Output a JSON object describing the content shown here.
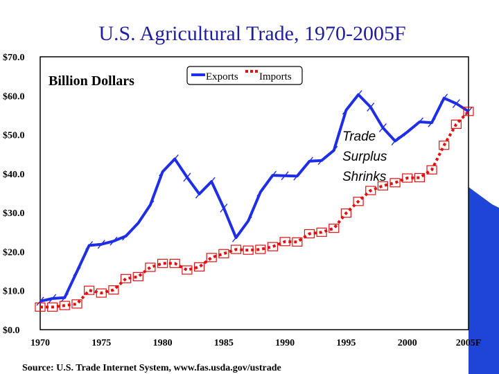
{
  "chart_data": {
    "type": "line",
    "title": "U.S. Agricultural Trade, 1970-2005F",
    "units_label": "Billion Dollars",
    "annotation": [
      "Trade",
      "Surplus",
      "Shrinks"
    ],
    "source": "Source:  U.S. Trade Internet System, www.fas.usda.gov/ustrade",
    "ylim": [
      0,
      70
    ],
    "y_ticks": [
      "$0.0",
      "$10.0",
      "$20.0",
      "$30.0",
      "$40.0",
      "$50.0",
      "$60.0",
      "$70.0"
    ],
    "x_ticks": [
      {
        "year": 1970,
        "label": "1970"
      },
      {
        "year": 1975,
        "label": "1975"
      },
      {
        "year": 1980,
        "label": "1980"
      },
      {
        "year": 1985,
        "label": "1985"
      },
      {
        "year": 1990,
        "label": "1990"
      },
      {
        "year": 1995,
        "label": "1995"
      },
      {
        "year": 2000,
        "label": "2000"
      },
      {
        "year": 2005,
        "label": "2005F"
      }
    ],
    "x": [
      1970,
      1971,
      1972,
      1973,
      1974,
      1975,
      1976,
      1977,
      1978,
      1979,
      1980,
      1981,
      1982,
      1983,
      1984,
      1985,
      1986,
      1987,
      1988,
      1989,
      1990,
      1991,
      1992,
      1993,
      1994,
      1995,
      1996,
      1997,
      1998,
      1999,
      2000,
      2001,
      2002,
      2003,
      2004,
      2005
    ],
    "series": [
      {
        "name": "Exports",
        "color": "#1e2ee6",
        "style": "solid",
        "values": [
          7.3,
          8.0,
          8.2,
          14.9,
          21.6,
          21.9,
          22.7,
          24.0,
          27.3,
          32.0,
          40.5,
          43.8,
          39.1,
          34.8,
          38.0,
          31.2,
          23.6,
          27.9,
          35.3,
          39.6,
          39.5,
          39.4,
          43.2,
          43.4,
          46.0,
          56.3,
          60.3,
          57.1,
          51.8,
          48.4,
          50.7,
          53.3,
          53.1,
          59.4,
          58.0,
          56.0
        ]
      },
      {
        "name": "Imports",
        "color": "#e01010",
        "style": "dotted",
        "values": [
          5.8,
          5.8,
          6.2,
          6.6,
          10.1,
          9.4,
          10.2,
          13.1,
          13.6,
          16.0,
          17.0,
          17.0,
          15.3,
          16.1,
          18.5,
          19.5,
          20.6,
          20.4,
          20.6,
          21.3,
          22.6,
          22.5,
          24.6,
          25.0,
          26.0,
          29.9,
          32.9,
          35.7,
          36.9,
          37.7,
          38.9,
          39.0,
          41.0,
          47.3,
          52.7,
          56.0
        ]
      }
    ],
    "legend_position": "top-center"
  }
}
